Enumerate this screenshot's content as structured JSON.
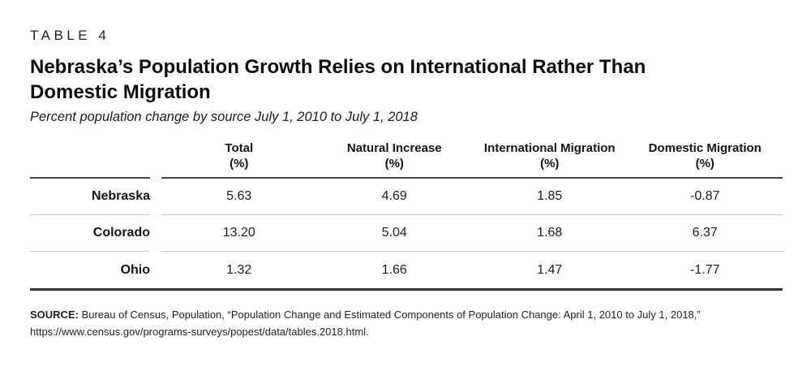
{
  "header": {
    "table_label": "TABLE 4",
    "title_line1": "Nebraska’s Population Growth Relies on International Rather Than",
    "title_line2": "Domestic Migration",
    "subtitle": "Percent population change by source July 1, 2010 to July 1, 2018"
  },
  "chart_data": {
    "type": "table",
    "title": "Nebraska’s Population Growth Relies on International Rather Than Domestic Migration",
    "subtitle": "Percent population change by source July 1, 2010 to July 1, 2018",
    "columns": [
      {
        "label": "Total",
        "unit": "(%)"
      },
      {
        "label": "Natural Increase",
        "unit": "(%)"
      },
      {
        "label": "International Migration",
        "unit": "(%)"
      },
      {
        "label": "Domestic Migration",
        "unit": "(%)"
      }
    ],
    "rows": [
      {
        "label": "Nebraska",
        "values": [
          "5.63",
          "4.69",
          "1.85",
          "-0.87"
        ]
      },
      {
        "label": "Colorado",
        "values": [
          "13.20",
          "5.04",
          "1.68",
          "6.37"
        ]
      },
      {
        "label": "Ohio",
        "values": [
          "1.32",
          "1.66",
          "1.47",
          "-1.77"
        ]
      }
    ]
  },
  "source": {
    "label": "SOURCE:",
    "line1_rest": " Bureau of Census, Population, “Population Change and Estimated Components of Population Change: April 1, 2010 to July 1, 2018,”",
    "line2": "https://www.census.gov/programs-surveys/popest/data/tables.2018.html."
  },
  "colors": {
    "text": "#111111",
    "rule_dark": "#454545",
    "rule_light": "#c6c6c6",
    "rule_bottom": "#333333"
  }
}
